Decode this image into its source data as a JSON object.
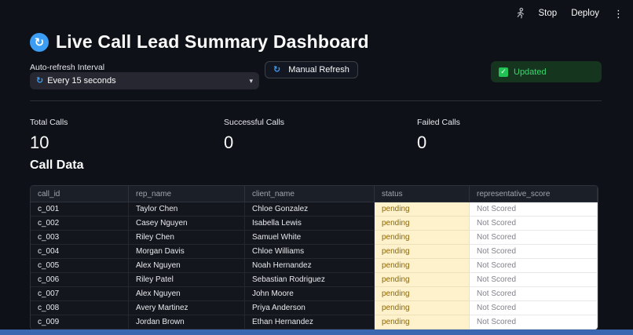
{
  "toolbar": {
    "stop": "Stop",
    "deploy": "Deploy"
  },
  "title": "Live Call Lead Summary Dashboard",
  "controls": {
    "interval_label": "Auto-refresh Interval",
    "interval_selected": "Every 15 seconds",
    "manual_refresh": "Manual Refresh",
    "status": "Updated"
  },
  "metrics": [
    {
      "label": "Total Calls",
      "value": "10"
    },
    {
      "label": "Successful Calls",
      "value": "0"
    },
    {
      "label": "Failed Calls",
      "value": "0"
    }
  ],
  "section": "Call Data",
  "table": {
    "columns": [
      "call_id",
      "rep_name",
      "client_name",
      "status",
      "representative_score"
    ],
    "rows": [
      [
        "c_001",
        "Taylor Chen",
        "Chloe Gonzalez",
        "pending",
        "Not Scored"
      ],
      [
        "c_002",
        "Casey Nguyen",
        "Isabella Lewis",
        "pending",
        "Not Scored"
      ],
      [
        "c_003",
        "Riley Chen",
        "Samuel White",
        "pending",
        "Not Scored"
      ],
      [
        "c_004",
        "Morgan Davis",
        "Chloe Williams",
        "pending",
        "Not Scored"
      ],
      [
        "c_005",
        "Alex Nguyen",
        "Noah Hernandez",
        "pending",
        "Not Scored"
      ],
      [
        "c_006",
        "Riley Patel",
        "Sebastian Rodriguez",
        "pending",
        "Not Scored"
      ],
      [
        "c_007",
        "Alex Nguyen",
        "John Moore",
        "pending",
        "Not Scored"
      ],
      [
        "c_008",
        "Avery Martinez",
        "Priya Anderson",
        "pending",
        "Not Scored"
      ],
      [
        "c_009",
        "Jordan Brown",
        "Ethan Hernandez",
        "pending",
        "Not Scored"
      ]
    ]
  },
  "icons": {
    "refresh": "↻",
    "check": "✓",
    "chevron_down": "▾",
    "overflow_menu": "⋮"
  },
  "colors": {
    "accent_blue": "#3c9df4",
    "success_green": "#21c354",
    "status_cell_bg": "#fdf2cc",
    "status_cell_text": "#8d6708",
    "score_cell_bg": "#ffffff",
    "score_cell_text": "#80838c",
    "bottom_bar": "#3b66b0"
  }
}
